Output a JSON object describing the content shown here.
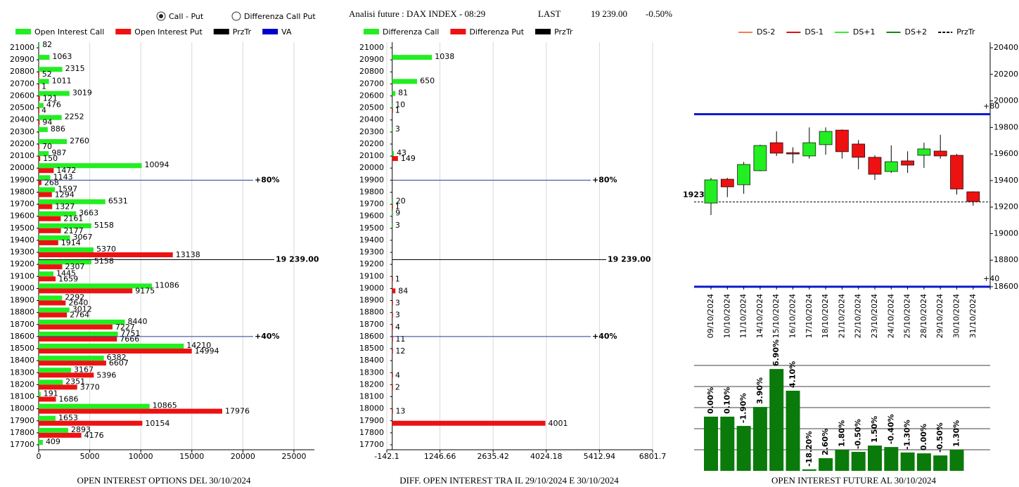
{
  "header": {
    "options": [
      {
        "label": "Call - Put",
        "selected": true
      },
      {
        "label": "Differenza Call Put",
        "selected": false
      }
    ],
    "title": "Analisi future : DAX INDEX - 08:29",
    "last_label": "LAST",
    "last": "19 239.00",
    "change": "-0.50%"
  },
  "chart_data": [
    {
      "type": "hbar",
      "title": "OPEN INTEREST OPTIONS DEL 30/10/2024",
      "categories": [
        21000,
        20900,
        20800,
        20700,
        20600,
        20500,
        20400,
        20300,
        20200,
        20100,
        20000,
        19900,
        19800,
        19700,
        19600,
        19500,
        19400,
        19300,
        19200,
        19100,
        19000,
        18900,
        18800,
        18700,
        18600,
        18500,
        18400,
        18300,
        18200,
        18100,
        18000,
        17900,
        17800,
        17700
      ],
      "series": [
        {
          "name": "Open Interest Call",
          "color": "#22ee22",
          "values": [
            82,
            1063,
            2315,
            1011,
            3019,
            476,
            2252,
            886,
            2760,
            987,
            10094,
            1143,
            1597,
            6531,
            3663,
            5158,
            3067,
            5370,
            5158,
            1445,
            11086,
            2292,
            3012,
            8440,
            7751,
            14210,
            6382,
            3167,
            2351,
            191,
            10865,
            1653,
            2893,
            409
          ]
        },
        {
          "name": "Open Interest Put",
          "color": "#ee1111",
          "values": [
            null,
            null,
            52,
            1,
            121,
            4,
            94,
            null,
            70,
            150,
            1472,
            268,
            1294,
            1327,
            2161,
            2177,
            1914,
            13138,
            2307,
            1659,
            9175,
            2640,
            2764,
            7227,
            7666,
            14994,
            6607,
            5396,
            3770,
            1686,
            17976,
            10154,
            4176,
            null
          ]
        }
      ],
      "legend_extra": [
        {
          "name": "PrzTr",
          "color": "#000000"
        },
        {
          "name": "VA",
          "color": "#0000cc"
        }
      ],
      "xlim": [
        0,
        27000
      ],
      "xticks": [
        0,
        5000,
        10000,
        15000,
        20000,
        25000
      ],
      "lines": [
        {
          "value": 19900,
          "label": "+80%",
          "color": "#2a3a9a"
        },
        {
          "value": 19239,
          "label": "19 239.00",
          "color": "#000000"
        },
        {
          "value": 18600,
          "label": "+40%",
          "color": "#2a3a9a"
        }
      ]
    },
    {
      "type": "hbar",
      "title": "DIFF. OPEN INTEREST TRA IL 29/10/2024 E 30/10/2024",
      "categories": [
        21000,
        20900,
        20800,
        20700,
        20600,
        20500,
        20400,
        20300,
        20200,
        20100,
        20000,
        19900,
        19800,
        19700,
        19600,
        19500,
        19400,
        19300,
        19200,
        19100,
        19000,
        18900,
        18800,
        18700,
        18600,
        18500,
        18400,
        18300,
        18200,
        18100,
        18000,
        17900,
        17800,
        17700
      ],
      "series": [
        {
          "name": "Differenza Call",
          "color": "#22ee22",
          "values": [
            null,
            1038,
            null,
            650,
            81,
            10,
            null,
            3,
            null,
            43,
            null,
            null,
            null,
            20,
            9,
            3,
            null,
            null,
            null,
            null,
            null,
            null,
            null,
            null,
            null,
            null,
            null,
            null,
            null,
            null,
            null,
            null,
            null,
            null
          ]
        },
        {
          "name": "Differenza Put",
          "color": "#ee1111",
          "values": [
            null,
            null,
            null,
            null,
            null,
            1,
            null,
            null,
            null,
            149,
            null,
            null,
            null,
            1,
            null,
            null,
            null,
            null,
            null,
            1,
            84,
            3,
            3,
            4,
            11,
            12,
            null,
            4,
            2,
            null,
            13,
            4001,
            null,
            null
          ]
        }
      ],
      "legend_extra": [
        {
          "name": "PrzTr",
          "color": "#000000"
        }
      ],
      "xlim": [
        -142.1,
        6801.7
      ],
      "xticks": [
        -142.1,
        1246.66,
        2635.42,
        4024.18,
        5412.94,
        6801.7
      ],
      "lines": [
        {
          "value": 19900,
          "label": "+80%",
          "color": "#2a3a9a"
        },
        {
          "value": 19239,
          "label": "19 239.00",
          "color": "#000000"
        },
        {
          "value": 18600,
          "label": "+40%",
          "color": "#2a3a9a"
        }
      ]
    },
    {
      "type": "candlestick",
      "x": [
        "09/10/2024",
        "10/10/2024",
        "11/10/2024",
        "14/10/2024",
        "15/10/2024",
        "16/10/2024",
        "17/10/2024",
        "18/10/2024",
        "21/10/2024",
        "22/10/2024",
        "23/10/2024",
        "24/10/2024",
        "25/10/2024",
        "28/10/2024",
        "29/10/2024",
        "30/10/2024",
        "31/10/2024"
      ],
      "open": [
        19230,
        19410,
        19368,
        19474,
        19685,
        19610,
        19585,
        19670,
        19780,
        19675,
        19575,
        19468,
        19548,
        19590,
        19622,
        19590,
        19315
      ],
      "high": [
        19420,
        19420,
        19540,
        19670,
        19770,
        19650,
        19800,
        19800,
        19785,
        19705,
        19590,
        19665,
        19620,
        19685,
        19745,
        19600,
        19318
      ],
      "low": [
        19140,
        19275,
        19300,
        19470,
        19585,
        19530,
        19565,
        19595,
        19565,
        19485,
        19405,
        19457,
        19457,
        19495,
        19565,
        19295,
        19210
      ],
      "close": [
        19405,
        19352,
        19521,
        19664,
        19606,
        19600,
        19685,
        19770,
        19617,
        19575,
        19447,
        19542,
        19516,
        19638,
        19585,
        19336,
        19241
      ],
      "up_color": "#22ee22",
      "down_color": "#ee1111",
      "legend": [
        {
          "name": "DS-2",
          "color": "#f08050",
          "dash": false
        },
        {
          "name": "DS-1",
          "color": "#dd1111",
          "dash": false
        },
        {
          "name": "DS+1",
          "color": "#33ee33",
          "dash": false
        },
        {
          "name": "DS+2",
          "color": "#118811",
          "dash": false
        },
        {
          "name": "PrzTr",
          "color": "#000000",
          "dash": true
        }
      ],
      "ylim": [
        18600,
        20400
      ],
      "yticks": [
        18600,
        18800,
        19000,
        19200,
        19400,
        19600,
        19800,
        20000,
        20200,
        20400
      ],
      "price": 19239,
      "lines": [
        {
          "value": 19900,
          "label": "+80",
          "color": "#0a1ad0"
        },
        {
          "value": 18600,
          "label": "+40",
          "color": "#0a1ad0"
        }
      ]
    },
    {
      "type": "bar",
      "title": "OPEN INTEREST FUTURE AL 30/10/2024",
      "values": [
        2.57,
        2.57,
        2.13,
        3.03,
        4.83,
        3.8,
        0.07,
        0.6,
        1.0,
        0.9,
        1.2,
        1.13,
        0.87,
        0.83,
        0.73,
        1.0
      ],
      "change_labels": [
        "0.00%",
        "0.10%",
        "-1.90%",
        "3.90%",
        "6.90%",
        "4.10%",
        "-18.20%",
        "2.60%",
        "1.80%",
        "-0.50%",
        "1.50%",
        "-0.40%",
        "-1.30%",
        "0.00%",
        "-0.50%",
        "1.30%"
      ],
      "color": "#0a7a0a",
      "ylim": [
        0,
        6
      ],
      "yticks": [
        1,
        2,
        3,
        4,
        5
      ],
      "grid": true
    }
  ]
}
